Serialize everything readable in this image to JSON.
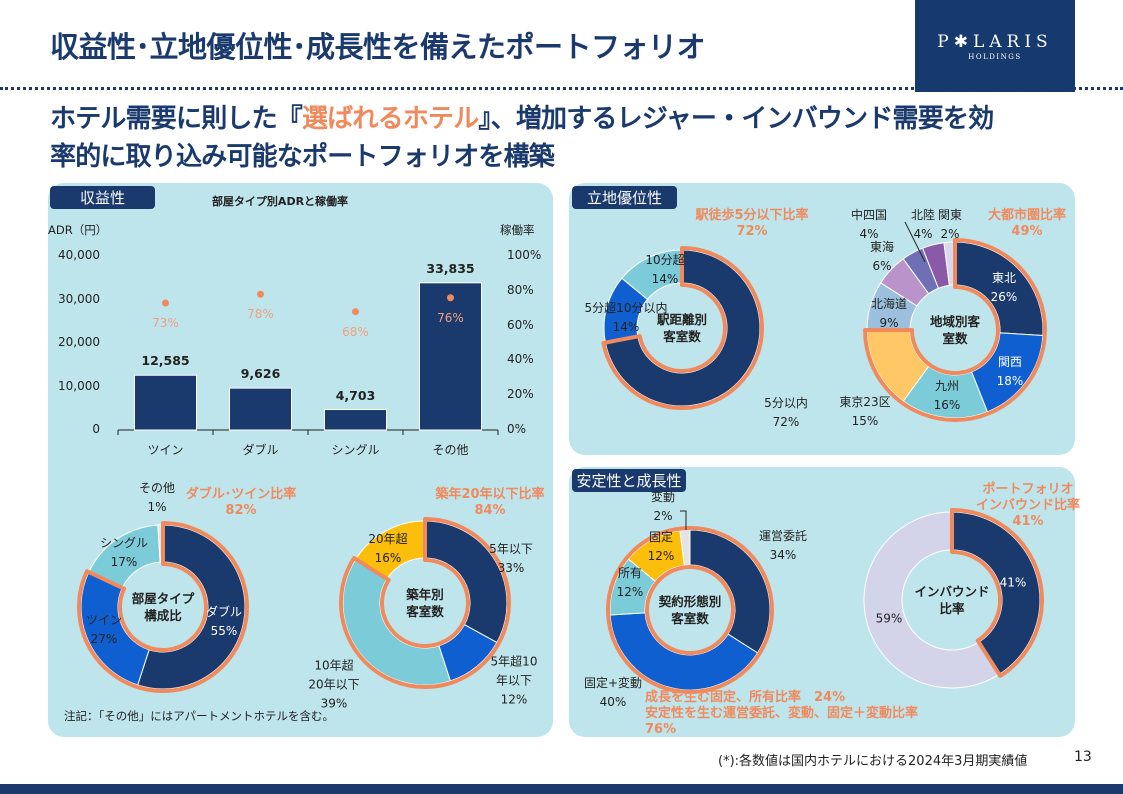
{
  "header": {
    "title": "収益性･立地優位性･成長性を備えたポートフォリオ",
    "logo_text": "P✱LARIS",
    "logo_sub": "HOLDINGS",
    "subtitle": {
      "line1_pre": "ホテル需要に則した『",
      "line1_highlight": "選ばれるホテル",
      "line1_post": "』、増加するレジャー・インバウンド需要を効",
      "line2": "率的に取り込み可能なポートフォリオを構築"
    }
  },
  "sections": {
    "profitability": "収益性",
    "location": "立地優位性",
    "stability": "安定性と成長性"
  },
  "colors": {
    "navy": "#1a3a6e",
    "blue": "#0f5fd0",
    "cyan": "#7ccbd9",
    "accent": "#f08a5d",
    "panel": "#bfe5ec"
  },
  "chart_data": [
    {
      "type": "bar",
      "title": "部屋タイプ別ADRと稼働率",
      "ylabel": "ADR（円）",
      "y2label": "稼働率",
      "categories": [
        "ツイン",
        "ダブル",
        "シングル",
        "その他"
      ],
      "values": [
        12585,
        9626,
        4703,
        33835
      ],
      "value_labels": [
        "12,585",
        "9,626",
        "4,703",
        "33,835"
      ],
      "occupancy": [
        73,
        78,
        68,
        76
      ],
      "occupancy_labels": [
        "73%",
        "78%",
        "68%",
        "76%"
      ],
      "ylim": [
        0,
        40000
      ],
      "yticks": [
        "0",
        "10,000",
        "20,000",
        "30,000",
        "40,000"
      ],
      "y2lim": [
        0,
        100
      ],
      "y2ticks": [
        "0%",
        "20%",
        "40%",
        "60%",
        "80%",
        "100%"
      ]
    },
    {
      "type": "pie",
      "id": "room",
      "center_label": "部屋タイプ\n構成比",
      "callout": "ダブル･ツイン比率\n82%",
      "labels": [
        "ダブル",
        "ツイン",
        "シングル",
        "その他"
      ],
      "values": [
        55,
        27,
        17,
        1
      ],
      "highlight": [
        0,
        1
      ],
      "colors": [
        "#1a3a6e",
        "#0f5fd0",
        "#7ccbd9",
        "#e4e4e4"
      ]
    },
    {
      "type": "pie",
      "id": "age",
      "center_label": "築年別\n客室数",
      "callout": "築年20年以下比率\n84%",
      "labels": [
        "5年以下",
        "5年超10\n年以下",
        "10年超\n20年以下",
        "20年超"
      ],
      "values": [
        33,
        12,
        39,
        16
      ],
      "highlight": [
        0,
        1,
        2
      ],
      "colors": [
        "#1a3a6e",
        "#0f5fd0",
        "#7ccbd9",
        "#fbbf0b"
      ]
    },
    {
      "type": "pie",
      "id": "station",
      "center_label": "駅距離別\n客室数",
      "callout": "駅徒歩5分以下比率\n72%",
      "labels": [
        "5分以内",
        "5分超10分以内",
        "10分超"
      ],
      "values": [
        72,
        14,
        14
      ],
      "highlight": [
        0
      ],
      "colors": [
        "#1a3a6e",
        "#0f5fd0",
        "#7ccbd9"
      ]
    },
    {
      "type": "pie",
      "id": "region",
      "center_label": "地域別客\n室数",
      "callout": "大都市圏比率\n49%",
      "labels": [
        "東北",
        "関西",
        "九州",
        "東京23区",
        "北海道",
        "東海",
        "中四国",
        "北陸",
        "関東"
      ],
      "values": [
        26,
        18,
        16,
        15,
        9,
        6,
        4,
        4,
        2
      ],
      "highlight": [
        0,
        1,
        2,
        3
      ],
      "colors": [
        "#1a3a6e",
        "#0f5fd0",
        "#7ccbd9",
        "#ffc766",
        "#9bbfdc",
        "#b993c9",
        "#6f6fb5",
        "#8a5aa8",
        "#d8d8ee"
      ]
    },
    {
      "type": "pie",
      "id": "contract",
      "center_label": "契約形態別\n客室数",
      "callout": "成長を生む固定、所有比率　24%\n安定性を生む運営委託、変動、固定＋変動比率\n76%",
      "labels": [
        "運営委託",
        "固定+変動",
        "所有",
        "固定",
        "変動"
      ],
      "values": [
        34,
        40,
        12,
        12,
        2
      ],
      "highlight": [
        0,
        1,
        2,
        3,
        4
      ],
      "colors": [
        "#1a3a6e",
        "#0f5fd0",
        "#7ccbd9",
        "#fbbf0b",
        "#e4e4e4"
      ]
    },
    {
      "type": "pie",
      "id": "inbound",
      "center_label": "インバウンド\n比率",
      "callout": "ポートフォリオ\nインバウンド比率\n41%",
      "labels": [
        "",
        ""
      ],
      "values": [
        41,
        59
      ],
      "highlight": [
        0
      ],
      "colors": [
        "#1a3a6e",
        "#d3d3ea"
      ]
    }
  ],
  "notes": {
    "apartment": "注記：「その他」にはアパートメントホテルを含む。",
    "source": "(*):各数値は国内ホテルにおける2024年3月期実績値",
    "page": "13"
  }
}
